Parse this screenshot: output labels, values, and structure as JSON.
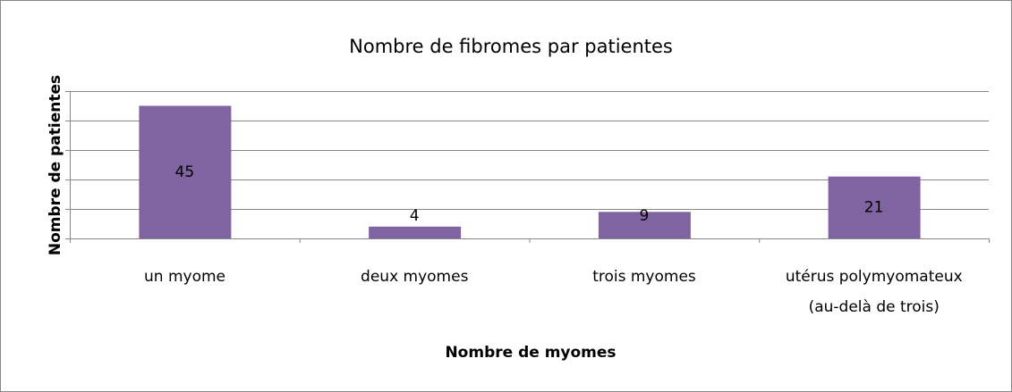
{
  "chart_data": {
    "type": "bar",
    "title": "Nombre de fibromes par patientes",
    "xlabel": "Nombre de myomes",
    "ylabel": "Nombre de patientes",
    "categories": [
      "un myome",
      "deux myomes",
      "trois myomes",
      "utérus polymyomateux\n(au-delà de trois)"
    ],
    "values": [
      45,
      4,
      9,
      21
    ],
    "color": "#8064a2",
    "ylim": [
      0,
      50
    ],
    "yticks": [
      0,
      10,
      20,
      30,
      40,
      50
    ],
    "grid": true
  }
}
